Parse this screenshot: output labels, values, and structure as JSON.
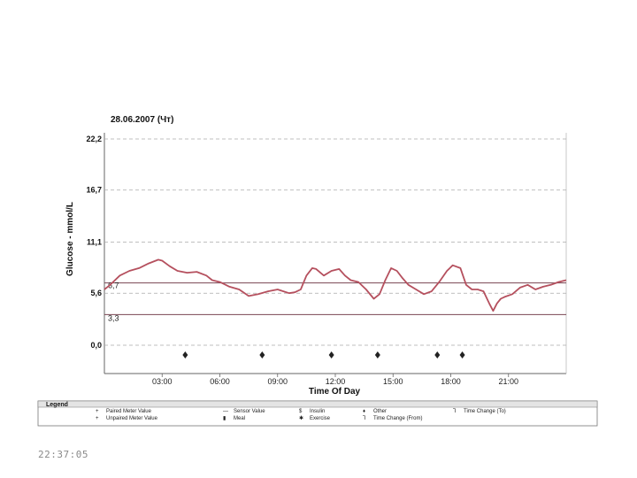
{
  "timestamp": "22:37:05",
  "colors": {
    "trace": "#b5505e",
    "target_line": "#7a4452",
    "target_label_high": "#c05a6a",
    "target_label_low": "#3c8a9a",
    "grid": "#aaaaaa",
    "frame": "#666666"
  },
  "chart_data": {
    "type": "line",
    "title": "28.06.2007 (Чт)",
    "xlabel": "Time Of Day",
    "ylabel": "Glucose - mmol/L",
    "xlim": [
      0,
      24
    ],
    "ylim": [
      0,
      22.2
    ],
    "y_ticks": [
      {
        "value": 22.2,
        "label": "22,2"
      },
      {
        "value": 16.7,
        "label": "16,7"
      },
      {
        "value": 11.1,
        "label": "11,1"
      },
      {
        "value": 5.6,
        "label": "5,6"
      },
      {
        "value": 0,
        "label": "0,0"
      }
    ],
    "x_ticks": [
      {
        "value": 3,
        "label": "03:00"
      },
      {
        "value": 6,
        "label": "06:00"
      },
      {
        "value": 9,
        "label": "09:00"
      },
      {
        "value": 12,
        "label": "12:00"
      },
      {
        "value": 15,
        "label": "15:00"
      },
      {
        "value": 18,
        "label": "18:00"
      },
      {
        "value": 21,
        "label": "21:00"
      }
    ],
    "target_range": [
      {
        "value": 6.7,
        "label": "6,7"
      },
      {
        "value": 3.3,
        "label": "3,3"
      }
    ],
    "series": [
      {
        "x": [
          0,
          0.3,
          0.8,
          1.3,
          1.8,
          2.3,
          2.8,
          3.0,
          3.4,
          3.8,
          4.3,
          4.8,
          5.3,
          5.6,
          6.0,
          6.5,
          7.0,
          7.5,
          8.0,
          8.5,
          9.0,
          9.3,
          9.6,
          9.9,
          10.2,
          10.5,
          10.8,
          11.0,
          11.4,
          11.8,
          12.2,
          12.5,
          12.8,
          13.2,
          13.6,
          14.0,
          14.3,
          14.6,
          14.9,
          15.2,
          15.5,
          15.8,
          16.2,
          16.6,
          17.0,
          17.4,
          17.8,
          18.1,
          18.5,
          18.8,
          19.1,
          19.4,
          19.7,
          20.0,
          20.2,
          20.4,
          20.6,
          20.8,
          21.2,
          21.6,
          22.0,
          22.4,
          22.8,
          23.2,
          23.6,
          24.0
        ],
        "y": [
          6.0,
          6.5,
          7.5,
          8.0,
          8.3,
          8.8,
          9.2,
          9.1,
          8.5,
          8.0,
          7.8,
          7.9,
          7.5,
          7.0,
          6.8,
          6.3,
          6.0,
          5.3,
          5.5,
          5.8,
          6.0,
          5.8,
          5.6,
          5.7,
          6.0,
          7.5,
          8.3,
          8.2,
          7.5,
          8.0,
          8.2,
          7.5,
          7.0,
          6.8,
          6.0,
          5.0,
          5.5,
          7.0,
          8.3,
          8.0,
          7.2,
          6.5,
          6.0,
          5.5,
          5.8,
          6.8,
          8.0,
          8.6,
          8.3,
          6.5,
          6.0,
          6.0,
          5.8,
          4.5,
          3.7,
          4.5,
          5.0,
          5.2,
          5.5,
          6.2,
          6.5,
          6.0,
          6.3,
          6.5,
          6.8,
          7.0
        ]
      }
    ],
    "markers": [
      4.2,
      8.2,
      11.8,
      14.2,
      17.3,
      18.6
    ],
    "legend": {
      "title": "Legend",
      "entries": [
        {
          "symbol": "+",
          "label": "Paired Meter Value"
        },
        {
          "symbol": "+",
          "label": "Unpaired Meter Value"
        },
        {
          "symbol": "—",
          "label": "Sensor Value"
        },
        {
          "symbol": "▮",
          "label": "Meal"
        },
        {
          "symbol": "$",
          "label": "Insulin"
        },
        {
          "symbol": "✱",
          "label": "Exercise"
        },
        {
          "symbol": "♦",
          "label": "Other"
        },
        {
          "symbol": "⅂",
          "label": "Time Change (From)"
        },
        {
          "symbol": "⅂",
          "label": "Time Change (To)"
        }
      ]
    }
  }
}
